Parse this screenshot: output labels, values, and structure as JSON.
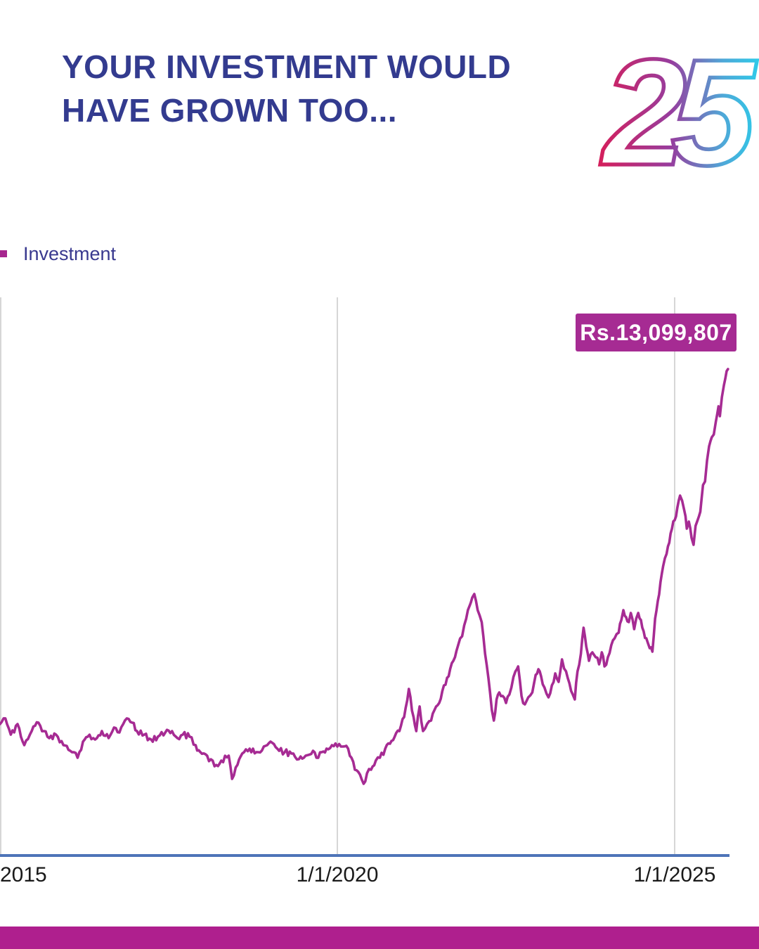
{
  "header": {
    "title_line1": "YOUR INVESTMENT WOULD",
    "title_line2": "HAVE GROWN TOO...",
    "logo_text": "25"
  },
  "legend": {
    "label": "Investment"
  },
  "callout": {
    "value_label": "Rs.13,099,807"
  },
  "colors": {
    "title_navy": "#333B8F",
    "legend_text": "#39398F",
    "line_magenta": "#A62B93",
    "callout_bg": "#A62B93",
    "callout_text": "#FFFFFF",
    "axis_blue": "#4E74B8",
    "gridline_gray": "#D6D6D6",
    "bottom_bar_magenta": "#AF1F8E",
    "logo_gradient": [
      "#D41F5C",
      "#973D9E",
      "#2FC9E8"
    ]
  },
  "chart_data": {
    "type": "line",
    "title": "",
    "xlabel": "",
    "ylabel": "",
    "grid": "vertical-only",
    "legend_position": "top-left",
    "x_axis": {
      "ticks": [
        {
          "label": "2015",
          "year": 2015
        },
        {
          "label": "1/1/2020",
          "year": 2020
        },
        {
          "label": "1/1/2025",
          "year": 2025
        }
      ]
    },
    "y_axis": {
      "tick_labels_visible": false,
      "min": 0,
      "max": 15000000
    },
    "annotation": {
      "text": "Rs.13,099,807",
      "year": 2025.79,
      "value": 13099807
    },
    "series": [
      {
        "name": "Investment",
        "points": [
          [
            2015.0,
            3568000
          ],
          [
            2015.08,
            3719000
          ],
          [
            2015.16,
            3284000
          ],
          [
            2015.26,
            3568000
          ],
          [
            2015.36,
            3001000
          ],
          [
            2015.47,
            3379000
          ],
          [
            2015.57,
            3605000
          ],
          [
            2015.65,
            3379000
          ],
          [
            2015.73,
            3190000
          ],
          [
            2015.83,
            3284000
          ],
          [
            2015.94,
            3001000
          ],
          [
            2016.04,
            2850000
          ],
          [
            2016.15,
            2662000
          ],
          [
            2016.23,
            3096000
          ],
          [
            2016.3,
            3228000
          ],
          [
            2016.41,
            3152000
          ],
          [
            2016.51,
            3379000
          ],
          [
            2016.61,
            3190000
          ],
          [
            2016.69,
            3473000
          ],
          [
            2016.77,
            3341000
          ],
          [
            2016.88,
            3719000
          ],
          [
            2016.96,
            3605000
          ],
          [
            2017.03,
            3379000
          ],
          [
            2017.14,
            3284000
          ],
          [
            2017.24,
            3152000
          ],
          [
            2017.34,
            3228000
          ],
          [
            2017.45,
            3341000
          ],
          [
            2017.55,
            3379000
          ],
          [
            2017.63,
            3190000
          ],
          [
            2017.71,
            3284000
          ],
          [
            2017.81,
            3228000
          ],
          [
            2017.9,
            3001000
          ],
          [
            2017.97,
            2813000
          ],
          [
            2018.07,
            2718000
          ],
          [
            2018.18,
            2435000
          ],
          [
            2018.28,
            2586000
          ],
          [
            2018.39,
            2718000
          ],
          [
            2018.44,
            2095000
          ],
          [
            2018.52,
            2473000
          ],
          [
            2018.59,
            2775000
          ],
          [
            2018.7,
            2907000
          ],
          [
            2018.8,
            2813000
          ],
          [
            2018.91,
            2964000
          ],
          [
            2019.01,
            3096000
          ],
          [
            2019.11,
            2907000
          ],
          [
            2019.22,
            2813000
          ],
          [
            2019.32,
            2775000
          ],
          [
            2019.43,
            2624000
          ],
          [
            2019.53,
            2718000
          ],
          [
            2019.64,
            2850000
          ],
          [
            2019.69,
            2662000
          ],
          [
            2019.77,
            2813000
          ],
          [
            2019.84,
            2907000
          ],
          [
            2019.92,
            3001000
          ],
          [
            2020.0,
            2964000
          ],
          [
            2020.08,
            2964000
          ],
          [
            2020.16,
            2907000
          ],
          [
            2020.21,
            2662000
          ],
          [
            2020.26,
            2341000
          ],
          [
            2020.31,
            2284000
          ],
          [
            2020.39,
            1963000
          ],
          [
            2020.44,
            2246000
          ],
          [
            2020.5,
            2341000
          ],
          [
            2020.57,
            2586000
          ],
          [
            2020.63,
            2662000
          ],
          [
            2020.71,
            2907000
          ],
          [
            2020.78,
            3039000
          ],
          [
            2020.85,
            3228000
          ],
          [
            2020.92,
            3379000
          ],
          [
            2020.99,
            3756000
          ],
          [
            2021.06,
            4511000
          ],
          [
            2021.13,
            3756000
          ],
          [
            2021.17,
            3379000
          ],
          [
            2021.22,
            4040000
          ],
          [
            2021.27,
            3379000
          ],
          [
            2021.33,
            3568000
          ],
          [
            2021.39,
            3662000
          ],
          [
            2021.44,
            3945000
          ],
          [
            2021.51,
            4134000
          ],
          [
            2021.58,
            4606000
          ],
          [
            2021.65,
            4851000
          ],
          [
            2021.72,
            5266000
          ],
          [
            2021.79,
            5682000
          ],
          [
            2021.85,
            5927000
          ],
          [
            2021.91,
            6399000
          ],
          [
            2021.96,
            6739000
          ],
          [
            2022.0,
            6965000
          ],
          [
            2022.03,
            7060000
          ],
          [
            2022.08,
            6626000
          ],
          [
            2022.14,
            6305000
          ],
          [
            2022.19,
            5455000
          ],
          [
            2022.24,
            4795000
          ],
          [
            2022.29,
            3945000
          ],
          [
            2022.32,
            3662000
          ],
          [
            2022.36,
            4228000
          ],
          [
            2022.4,
            4417000
          ],
          [
            2022.45,
            4323000
          ],
          [
            2022.5,
            4134000
          ],
          [
            2022.55,
            4360000
          ],
          [
            2022.58,
            4549000
          ],
          [
            2022.64,
            4983000
          ],
          [
            2022.68,
            5115000
          ],
          [
            2022.73,
            4323000
          ],
          [
            2022.78,
            4096000
          ],
          [
            2022.83,
            4285000
          ],
          [
            2022.89,
            4417000
          ],
          [
            2022.94,
            4889000
          ],
          [
            2022.98,
            5040000
          ],
          [
            2023.02,
            4851000
          ],
          [
            2023.07,
            4549000
          ],
          [
            2023.13,
            4285000
          ],
          [
            2023.18,
            4606000
          ],
          [
            2023.23,
            4927000
          ],
          [
            2023.28,
            4700000
          ],
          [
            2023.33,
            5304000
          ],
          [
            2023.39,
            4983000
          ],
          [
            2023.44,
            4662000
          ],
          [
            2023.49,
            4360000
          ],
          [
            2023.52,
            4228000
          ],
          [
            2023.56,
            4983000
          ],
          [
            2023.61,
            5455000
          ],
          [
            2023.65,
            6154000
          ],
          [
            2023.69,
            5644000
          ],
          [
            2023.73,
            5266000
          ],
          [
            2023.78,
            5493000
          ],
          [
            2023.83,
            5361000
          ],
          [
            2023.88,
            5172000
          ],
          [
            2023.92,
            5493000
          ],
          [
            2023.96,
            5115000
          ],
          [
            2024.01,
            5361000
          ],
          [
            2024.06,
            5682000
          ],
          [
            2024.11,
            5870000
          ],
          [
            2024.17,
            6021000
          ],
          [
            2024.21,
            6361000
          ],
          [
            2024.24,
            6626000
          ],
          [
            2024.28,
            6437000
          ],
          [
            2024.32,
            6305000
          ],
          [
            2024.35,
            6550000
          ],
          [
            2024.4,
            6116000
          ],
          [
            2024.43,
            6399000
          ],
          [
            2024.46,
            6550000
          ],
          [
            2024.5,
            6361000
          ],
          [
            2024.54,
            6059000
          ],
          [
            2024.58,
            5870000
          ],
          [
            2024.63,
            5606000
          ],
          [
            2024.67,
            5512000
          ],
          [
            2024.71,
            6399000
          ],
          [
            2024.75,
            6871000
          ],
          [
            2024.79,
            7381000
          ],
          [
            2024.83,
            7815000
          ],
          [
            2024.88,
            8136000
          ],
          [
            2024.92,
            8438000
          ],
          [
            2024.96,
            8815000
          ],
          [
            2025.0,
            9042000
          ],
          [
            2025.04,
            9381000
          ],
          [
            2025.08,
            9702000
          ],
          [
            2025.11,
            9570000
          ],
          [
            2025.14,
            9325000
          ],
          [
            2025.18,
            8815000
          ],
          [
            2025.21,
            9004000
          ],
          [
            2025.25,
            8570000
          ],
          [
            2025.28,
            8381000
          ],
          [
            2025.31,
            8891000
          ],
          [
            2025.34,
            9042000
          ],
          [
            2025.38,
            9268000
          ],
          [
            2025.42,
            9985000
          ],
          [
            2025.45,
            10080000
          ],
          [
            2025.48,
            10646000
          ],
          [
            2025.51,
            11024000
          ],
          [
            2025.55,
            11269000
          ],
          [
            2025.58,
            11344000
          ],
          [
            2025.61,
            11684000
          ],
          [
            2025.65,
            12100000
          ],
          [
            2025.67,
            11835000
          ],
          [
            2025.7,
            12345000
          ],
          [
            2025.73,
            12666000
          ],
          [
            2025.77,
            13043000
          ],
          [
            2025.79,
            13099807
          ]
        ]
      }
    ]
  }
}
